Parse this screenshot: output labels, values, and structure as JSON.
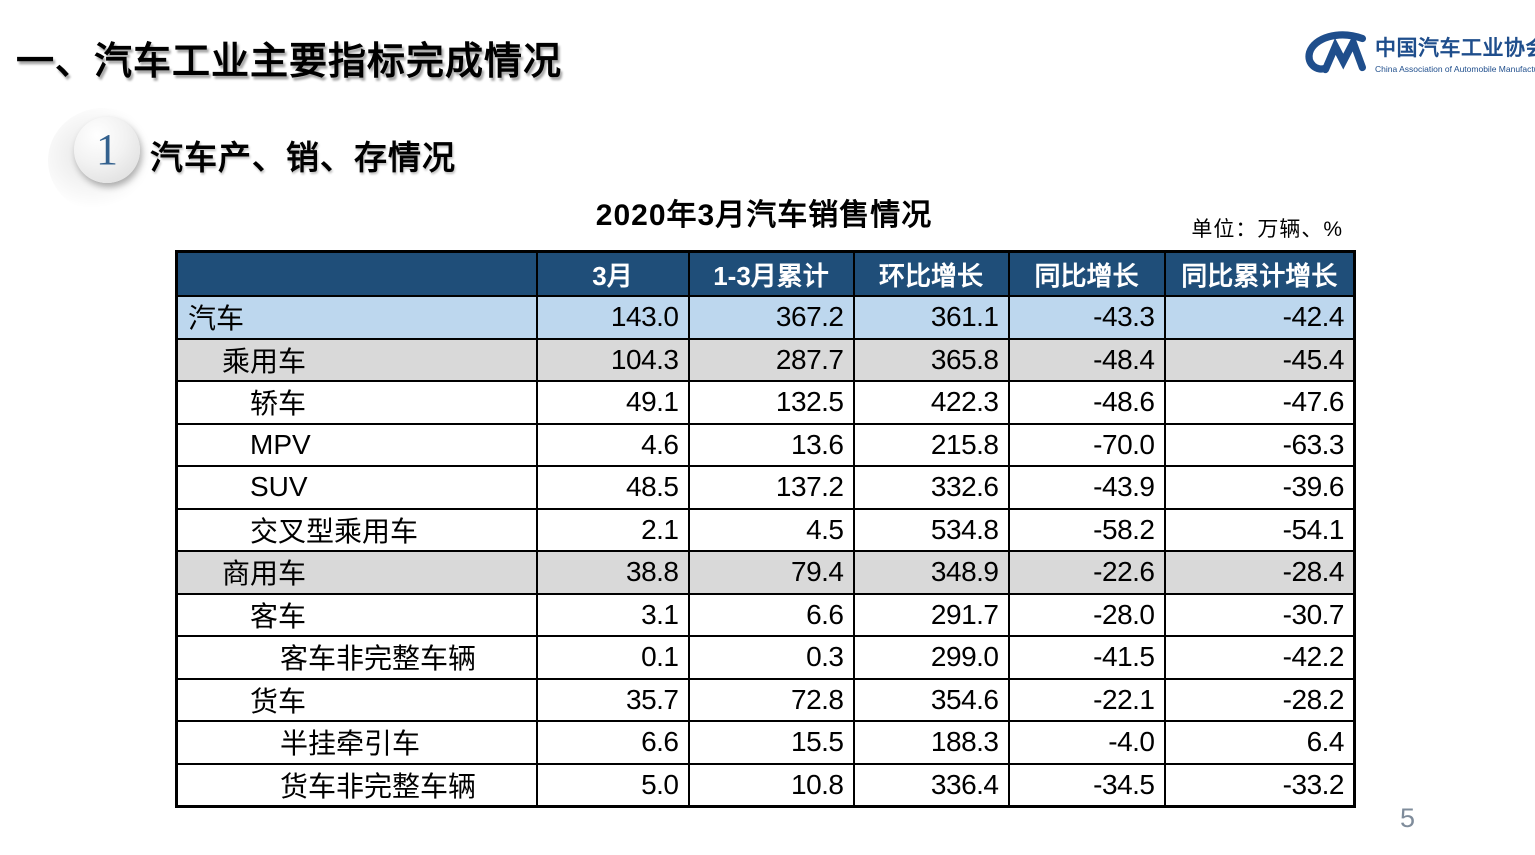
{
  "slide": {
    "title": "一、汽车工业主要指标完成情况",
    "section_number": "1",
    "section_title": "汽车产、销、存情况",
    "page_number": "5"
  },
  "logo": {
    "name_cn": "中国汽车工业协会",
    "name_en": "China Association of Automobile Manufacturers",
    "mark": "CM-swoosh-icon",
    "brand_color": "#1f4e8c"
  },
  "table": {
    "title": "2020年3月汽车销售情况",
    "unit_note": "单位：万辆、%",
    "columns": [
      "",
      "3月",
      "1-3月累计",
      "环比增长",
      "同比增长",
      "同比累计增长"
    ],
    "rows": [
      {
        "label": "汽车",
        "level": 0,
        "style": "blue",
        "values": [
          "143.0",
          "367.2",
          "361.1",
          "-43.3",
          "-42.4"
        ]
      },
      {
        "label": "乘用车",
        "level": 1,
        "style": "gray",
        "values": [
          "104.3",
          "287.7",
          "365.8",
          "-48.4",
          "-45.4"
        ]
      },
      {
        "label": "轿车",
        "level": 2,
        "style": "white",
        "values": [
          "49.1",
          "132.5",
          "422.3",
          "-48.6",
          "-47.6"
        ]
      },
      {
        "label": "MPV",
        "level": 2,
        "style": "white",
        "values": [
          "4.6",
          "13.6",
          "215.8",
          "-70.0",
          "-63.3"
        ]
      },
      {
        "label": "SUV",
        "level": 2,
        "style": "white",
        "values": [
          "48.5",
          "137.2",
          "332.6",
          "-43.9",
          "-39.6"
        ]
      },
      {
        "label": "交叉型乘用车",
        "level": 2,
        "style": "white",
        "values": [
          "2.1",
          "4.5",
          "534.8",
          "-58.2",
          "-54.1"
        ]
      },
      {
        "label": "商用车",
        "level": 1,
        "style": "gray",
        "values": [
          "38.8",
          "79.4",
          "348.9",
          "-22.6",
          "-28.4"
        ]
      },
      {
        "label": "客车",
        "level": 2,
        "style": "white",
        "values": [
          "3.1",
          "6.6",
          "291.7",
          "-28.0",
          "-30.7"
        ]
      },
      {
        "label": "客车非完整车辆",
        "level": 3,
        "style": "white",
        "values": [
          "0.1",
          "0.3",
          "299.0",
          "-41.5",
          "-42.2"
        ]
      },
      {
        "label": "货车",
        "level": 2,
        "style": "white",
        "values": [
          "35.7",
          "72.8",
          "354.6",
          "-22.1",
          "-28.2"
        ]
      },
      {
        "label": "半挂牵引车",
        "level": 3,
        "style": "white",
        "values": [
          "6.6",
          "15.5",
          "188.3",
          "-4.0",
          "6.4"
        ]
      },
      {
        "label": "货车非完整车辆",
        "level": 3,
        "style": "white",
        "values": [
          "5.0",
          "10.8",
          "336.4",
          "-34.5",
          "-33.2"
        ]
      }
    ]
  },
  "colors": {
    "header_bg": "#1f4e79",
    "total_row_bg": "#bdd7ee",
    "group_row_bg": "#d9d9d9",
    "border": "#000000",
    "page_number": "#7f8c9b"
  }
}
